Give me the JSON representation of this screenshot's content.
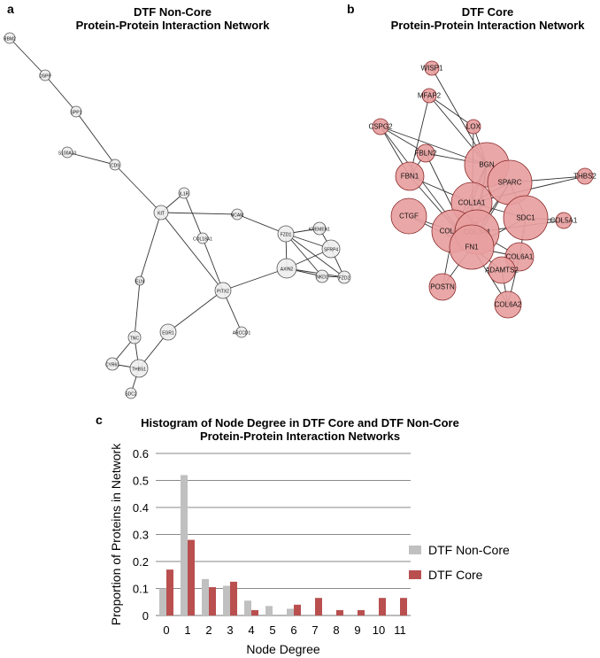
{
  "panel_a": {
    "letter": "a",
    "title_line1": "DTF Non-Core",
    "title_line2": "Protein-Protein Interaction Network",
    "nodes": [
      {
        "id": "RBM2",
        "label": "RBM2"
      },
      {
        "id": "DSPP",
        "label": "DSPP"
      },
      {
        "id": "SPP1",
        "label": "SPP1"
      },
      {
        "id": "S100A10",
        "label": "S100A10"
      },
      {
        "id": "CD9",
        "label": "CD9"
      },
      {
        "id": "KIT",
        "label": "KIT"
      },
      {
        "id": "IL1R",
        "label": "IL1R"
      },
      {
        "id": "NCAM",
        "label": "NCAM"
      },
      {
        "id": "COL18A1",
        "label": "COL18A1"
      },
      {
        "id": "ELN",
        "label": "ELN"
      },
      {
        "id": "PITX2",
        "label": "PITX2"
      },
      {
        "id": "EGR1",
        "label": "EGR1"
      },
      {
        "id": "TNC",
        "label": "TNC"
      },
      {
        "id": "CYR61",
        "label": "CYR61"
      },
      {
        "id": "THBS1",
        "label": "THBS1"
      },
      {
        "id": "SDC2",
        "label": "SDC2"
      },
      {
        "id": "ARCCD1",
        "label": "ARCCD1"
      },
      {
        "id": "FZD1",
        "label": "FZD1"
      },
      {
        "id": "KREMEN1",
        "label": "KREMEN1"
      },
      {
        "id": "SFRP4",
        "label": "SFRP4"
      },
      {
        "id": "AXIN2",
        "label": "AXIN2"
      },
      {
        "id": "NKD2",
        "label": "NKD2"
      },
      {
        "id": "FZD2",
        "label": "FZD2"
      }
    ],
    "edges": [
      [
        "RBM2",
        "DSPP"
      ],
      [
        "DSPP",
        "SPP1"
      ],
      [
        "SPP1",
        "CD9"
      ],
      [
        "S100A10",
        "CD9"
      ],
      [
        "CD9",
        "KIT"
      ],
      [
        "KIT",
        "IL1R"
      ],
      [
        "KIT",
        "NCAM"
      ],
      [
        "NCAM",
        "FZD1"
      ],
      [
        "IL1R",
        "COL18A1"
      ],
      [
        "KIT",
        "ELN"
      ],
      [
        "COL18A1",
        "PITX2"
      ],
      [
        "KIT",
        "PITX2"
      ],
      [
        "ELN",
        "TNC"
      ],
      [
        "PITX2",
        "EGR1"
      ],
      [
        "PITX2",
        "ARCCD1"
      ],
      [
        "PITX2",
        "AXIN2"
      ],
      [
        "EGR1",
        "THBS1"
      ],
      [
        "TNC",
        "THBS1"
      ],
      [
        "TNC",
        "CYR61"
      ],
      [
        "CYR61",
        "THBS1"
      ],
      [
        "THBS1",
        "SDC2"
      ],
      [
        "FZD1",
        "KREMEN1"
      ],
      [
        "FZD1",
        "SFRP4"
      ],
      [
        "FZD1",
        "AXIN2"
      ],
      [
        "FZD1",
        "NKD2"
      ],
      [
        "FZD1",
        "FZD2"
      ],
      [
        "KREMEN1",
        "SFRP4"
      ],
      [
        "SFRP4",
        "AXIN2"
      ],
      [
        "SFRP4",
        "FZD2"
      ],
      [
        "AXIN2",
        "NKD2"
      ],
      [
        "AXIN2",
        "FZD2"
      ],
      [
        "NKD2",
        "FZD2"
      ]
    ]
  },
  "panel_b": {
    "letter": "b",
    "title_line1": "DTF Core",
    "title_line2": "Protein-Protein Interaction Network",
    "nodes": [
      {
        "id": "WISP1",
        "label": "WISP1"
      },
      {
        "id": "MFAP2",
        "label": "MFAP2"
      },
      {
        "id": "LOX",
        "label": "LOX"
      },
      {
        "id": "CSPG2",
        "label": "CSPG2"
      },
      {
        "id": "FBLN2",
        "label": "FBLN2"
      },
      {
        "id": "BGN",
        "label": "BGN"
      },
      {
        "id": "SPARC",
        "label": "SPARC"
      },
      {
        "id": "THBS2",
        "label": "THBS2"
      },
      {
        "id": "FBN1",
        "label": "FBN1"
      },
      {
        "id": "COL1A1",
        "label": "COL1A1"
      },
      {
        "id": "SDC1",
        "label": "SDC1"
      },
      {
        "id": "COL5A1",
        "label": "COL5A1"
      },
      {
        "id": "CTGF",
        "label": "CTGF"
      },
      {
        "id": "COL1A2",
        "label": "COL1A2"
      },
      {
        "id": "COL3A1",
        "label": "COL3A1"
      },
      {
        "id": "FN1",
        "label": "FN1"
      },
      {
        "id": "COL6A1",
        "label": "COL6A1"
      },
      {
        "id": "ADAMTS2",
        "label": "ADAMTS2"
      },
      {
        "id": "POSTN",
        "label": "POSTN"
      },
      {
        "id": "COL6A2",
        "label": "COL6A2"
      }
    ],
    "edges": [
      [
        "WISP1",
        "BGN"
      ],
      [
        "MFAP2",
        "LOX"
      ],
      [
        "MFAP2",
        "FBN1"
      ],
      [
        "MFAP2",
        "BGN"
      ],
      [
        "LOX",
        "BGN"
      ],
      [
        "LOX",
        "FN1"
      ],
      [
        "CSPG2",
        "FBLN2"
      ],
      [
        "CSPG2",
        "BGN"
      ],
      [
        "CSPG2",
        "FN1"
      ],
      [
        "CSPG2",
        "FBN1"
      ],
      [
        "FBLN2",
        "FBN1"
      ],
      [
        "FBLN2",
        "FN1"
      ],
      [
        "FBLN2",
        "BGN"
      ],
      [
        "BGN",
        "SPARC"
      ],
      [
        "BGN",
        "COL1A1"
      ],
      [
        "BGN",
        "COL1A2"
      ],
      [
        "BGN",
        "COL3A1"
      ],
      [
        "BGN",
        "FN1"
      ],
      [
        "SPARC",
        "THBS2"
      ],
      [
        "SPARC",
        "COL1A1"
      ],
      [
        "SPARC",
        "SDC1"
      ],
      [
        "SPARC",
        "COL3A1"
      ],
      [
        "SPARC",
        "FN1"
      ],
      [
        "THBS2",
        "COL1A1"
      ],
      [
        "FBN1",
        "COL1A1"
      ],
      [
        "FBN1",
        "FN1"
      ],
      [
        "COL1A1",
        "COL1A2"
      ],
      [
        "COL1A1",
        "COL3A1"
      ],
      [
        "COL1A1",
        "FN1"
      ],
      [
        "COL1A1",
        "SDC1"
      ],
      [
        "SDC1",
        "COL5A1"
      ],
      [
        "SDC1",
        "FN1"
      ],
      [
        "SDC1",
        "COL6A1"
      ],
      [
        "CTGF",
        "FN1"
      ],
      [
        "CTGF",
        "COL1A2"
      ],
      [
        "COL1A2",
        "COL3A1"
      ],
      [
        "COL1A2",
        "FN1"
      ],
      [
        "COL3A1",
        "FN1"
      ],
      [
        "COL3A1",
        "COL6A1"
      ],
      [
        "FN1",
        "COL6A1"
      ],
      [
        "FN1",
        "ADAMTS2"
      ],
      [
        "FN1",
        "POSTN"
      ],
      [
        "FN1",
        "COL6A2"
      ],
      [
        "COL6A1",
        "COL6A2"
      ],
      [
        "COL6A1",
        "ADAMTS2"
      ],
      [
        "POSTN",
        "COL1A2"
      ],
      [
        "ADAMTS2",
        "COL6A2"
      ],
      [
        "COL5A1",
        "COL3A1"
      ]
    ]
  },
  "chart_data": {
    "type": "bar",
    "letter": "c",
    "title_line1": "Histogram of Node Degree in DTF Core and DTF Non-Core",
    "title_line2": "Protein-Protein Interaction Networks",
    "xlabel": "Node Degree",
    "ylabel": "Proportion of Proteins in Network",
    "categories": [
      "0",
      "1",
      "2",
      "3",
      "4",
      "5",
      "6",
      "7",
      "8",
      "9",
      "10",
      "11"
    ],
    "ylim": [
      0,
      0.6
    ],
    "yticks": [
      "0",
      "0.1",
      "0.2",
      "0.3",
      "0.4",
      "0.5",
      "0.6"
    ],
    "grid": true,
    "legend_position": "right",
    "series": [
      {
        "name": "DTF Non-Core",
        "color": "#c0c0c0",
        "values": [
          0.1,
          0.52,
          0.135,
          0.11,
          0.055,
          0.035,
          0.025,
          0,
          0,
          0,
          0,
          0
        ]
      },
      {
        "name": "DTF Core",
        "color": "#b94f4f",
        "values": [
          0.17,
          0.28,
          0.105,
          0.125,
          0.02,
          0,
          0.04,
          0.065,
          0.02,
          0.02,
          0.065,
          0.065
        ]
      }
    ]
  },
  "colors": {
    "core_node_fill": "#e8a0a0",
    "core_node_stroke": "#8a2a2a",
    "noncore_node_fill": "#eeeeee",
    "noncore_node_stroke": "#555555"
  }
}
